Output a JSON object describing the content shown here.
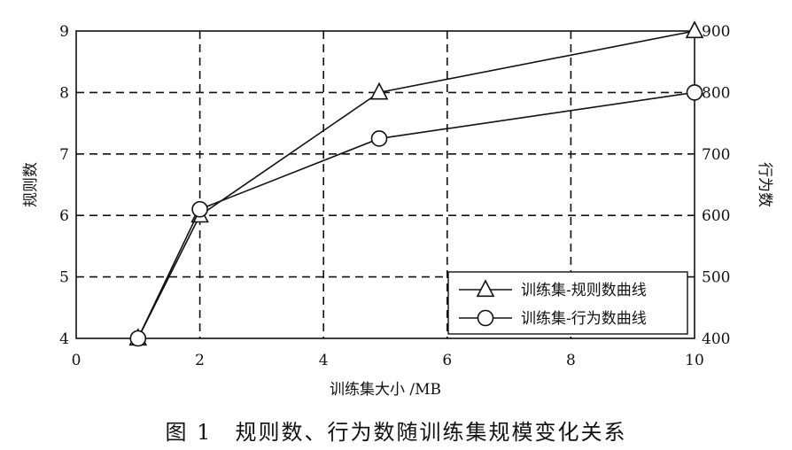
{
  "caption": "图 1　规则数、行为数随训练集规模变化关系",
  "chart_data": {
    "type": "line",
    "title": "",
    "xlabel": "训练集大小  /MB",
    "ylabel": "规则数",
    "y2label": "行为数",
    "xlim": [
      0,
      10
    ],
    "ylim": [
      4,
      9
    ],
    "y2lim": [
      400,
      900
    ],
    "x_ticks": [
      0,
      2,
      4,
      6,
      8,
      10
    ],
    "y_ticks": [
      4,
      5,
      6,
      7,
      8,
      9
    ],
    "y2_ticks": [
      400,
      500,
      600,
      700,
      800,
      900
    ],
    "grid": "dashed",
    "legend_position": "bottom-right",
    "series": [
      {
        "name": "训练集-规则数曲线",
        "axis": "left",
        "marker": "triangle",
        "x": [
          1,
          2,
          4.9,
          10
        ],
        "values": [
          4,
          6,
          8,
          9
        ]
      },
      {
        "name": "训练集-行为数曲线",
        "axis": "right",
        "marker": "circle",
        "x": [
          1,
          2,
          4.9,
          10
        ],
        "values": [
          400,
          610,
          725,
          800
        ]
      }
    ],
    "colors": {
      "line": "#111111",
      "grid": "#111111",
      "circle_fill": "#ffffff"
    }
  }
}
